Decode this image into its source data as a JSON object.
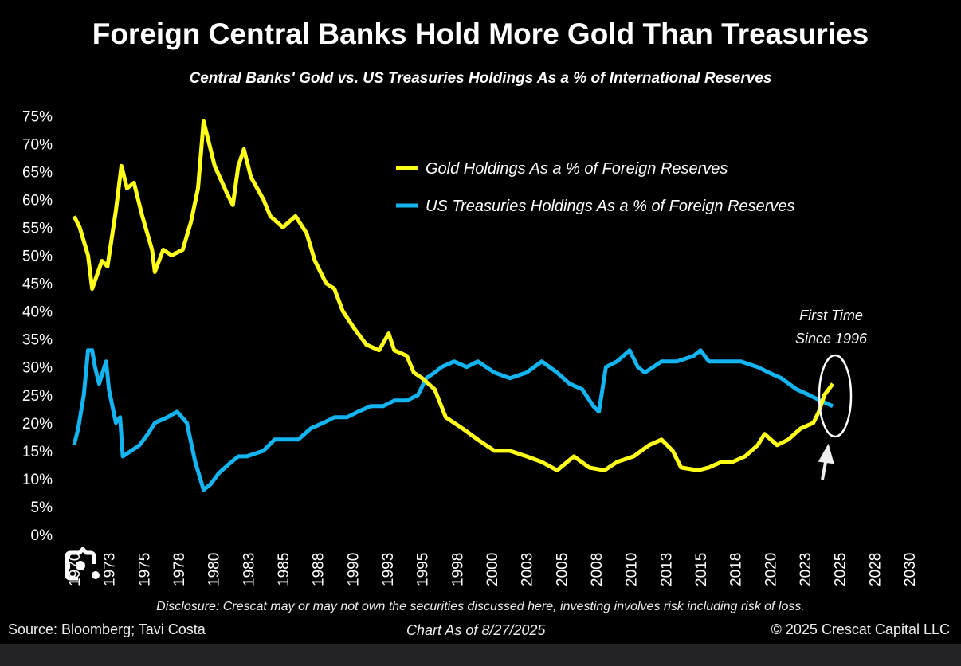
{
  "chart_data": {
    "type": "line",
    "title": "Foreign Central Banks Hold More Gold Than Treasuries",
    "subtitle": "Central Banks' Gold vs. US Treasuries Holdings As a % of International Reserves",
    "ylim": [
      0,
      75
    ],
    "xlim": [
      1970,
      2030
    ],
    "y_ticks": [
      "0%",
      "5%",
      "10%",
      "15%",
      "20%",
      "25%",
      "30%",
      "35%",
      "40%",
      "45%",
      "50%",
      "55%",
      "60%",
      "65%",
      "70%",
      "75%"
    ],
    "x_ticks": [
      "1970",
      "1973",
      "1975",
      "1978",
      "1980",
      "1983",
      "1985",
      "1988",
      "1990",
      "1993",
      "1995",
      "1998",
      "2000",
      "2003",
      "2005",
      "2008",
      "2010",
      "2013",
      "2015",
      "2018",
      "2020",
      "2023",
      "2025",
      "2028",
      "2030"
    ],
    "grid": false,
    "legend_placement": "top-right",
    "series": [
      {
        "name": "Gold Holdings As a % of Foreign Reserves",
        "color": "#ffff1a",
        "points": [
          [
            1970.0,
            57
          ],
          [
            1970.4,
            55
          ],
          [
            1971.0,
            50
          ],
          [
            1971.3,
            44
          ],
          [
            1972.0,
            49
          ],
          [
            1972.4,
            48
          ],
          [
            1973.0,
            58
          ],
          [
            1973.4,
            66
          ],
          [
            1973.8,
            62
          ],
          [
            1974.3,
            63
          ],
          [
            1974.9,
            57
          ],
          [
            1975.6,
            51
          ],
          [
            1975.8,
            47
          ],
          [
            1976.4,
            51
          ],
          [
            1977.0,
            50
          ],
          [
            1977.8,
            51
          ],
          [
            1978.4,
            56
          ],
          [
            1978.9,
            62
          ],
          [
            1979.3,
            74
          ],
          [
            1979.7,
            70
          ],
          [
            1980.1,
            66
          ],
          [
            1981.0,
            61
          ],
          [
            1981.4,
            59
          ],
          [
            1981.8,
            66
          ],
          [
            1982.2,
            69
          ],
          [
            1982.7,
            64
          ],
          [
            1983.6,
            60
          ],
          [
            1984.1,
            57
          ],
          [
            1985.0,
            55
          ],
          [
            1985.9,
            57
          ],
          [
            1986.7,
            54
          ],
          [
            1987.3,
            49
          ],
          [
            1988.1,
            45
          ],
          [
            1988.7,
            44
          ],
          [
            1989.3,
            40
          ],
          [
            1990.1,
            37
          ],
          [
            1991.0,
            34
          ],
          [
            1991.9,
            33
          ],
          [
            1992.6,
            36
          ],
          [
            1993.0,
            33
          ],
          [
            1993.9,
            32
          ],
          [
            1994.4,
            29
          ],
          [
            1995.0,
            28
          ],
          [
            1995.9,
            26
          ],
          [
            1996.7,
            21
          ],
          [
            1997.9,
            19
          ],
          [
            1999.0,
            17
          ],
          [
            2000.2,
            15
          ],
          [
            2001.3,
            15
          ],
          [
            2002.5,
            14
          ],
          [
            2003.6,
            13
          ],
          [
            2004.7,
            11.5
          ],
          [
            2005.9,
            14
          ],
          [
            2007.0,
            12
          ],
          [
            2008.1,
            11.5
          ],
          [
            2009.0,
            13
          ],
          [
            2010.2,
            14
          ],
          [
            2011.3,
            16
          ],
          [
            2012.2,
            17
          ],
          [
            2013.0,
            15
          ],
          [
            2013.6,
            12
          ],
          [
            2014.8,
            11.5
          ],
          [
            2015.6,
            12
          ],
          [
            2016.5,
            13
          ],
          [
            2017.3,
            13
          ],
          [
            2018.2,
            14
          ],
          [
            2019.1,
            16
          ],
          [
            2019.6,
            18
          ],
          [
            2020.5,
            16
          ],
          [
            2021.3,
            17
          ],
          [
            2022.2,
            19
          ],
          [
            2023.1,
            20
          ],
          [
            2023.5,
            22
          ],
          [
            2023.9,
            25
          ],
          [
            2024.5,
            27
          ]
        ]
      },
      {
        "name": "US Treasuries Holdings As a % of Foreign Reserves",
        "color": "#14b4f0",
        "points": [
          [
            1970.0,
            16
          ],
          [
            1970.3,
            19
          ],
          [
            1970.7,
            25
          ],
          [
            1971.0,
            33
          ],
          [
            1971.3,
            33
          ],
          [
            1971.5,
            30
          ],
          [
            1971.8,
            27
          ],
          [
            1972.3,
            31
          ],
          [
            1972.5,
            26
          ],
          [
            1973.0,
            20
          ],
          [
            1973.3,
            21
          ],
          [
            1973.5,
            14
          ],
          [
            1974.1,
            15
          ],
          [
            1974.7,
            16
          ],
          [
            1975.3,
            18
          ],
          [
            1975.8,
            20
          ],
          [
            1976.7,
            21
          ],
          [
            1977.4,
            22
          ],
          [
            1978.1,
            20
          ],
          [
            1978.7,
            13
          ],
          [
            1979.3,
            8
          ],
          [
            1979.8,
            9
          ],
          [
            1980.4,
            11
          ],
          [
            1981.3,
            13
          ],
          [
            1981.8,
            14
          ],
          [
            1982.4,
            14
          ],
          [
            1983.6,
            15
          ],
          [
            1984.4,
            17
          ],
          [
            1985.3,
            17
          ],
          [
            1986.1,
            17
          ],
          [
            1987.0,
            19
          ],
          [
            1987.9,
            20
          ],
          [
            1988.7,
            21
          ],
          [
            1989.6,
            21
          ],
          [
            1990.4,
            22
          ],
          [
            1991.3,
            23
          ],
          [
            1992.2,
            23
          ],
          [
            1993.0,
            24
          ],
          [
            1993.9,
            24
          ],
          [
            1994.7,
            25
          ],
          [
            1995.3,
            28
          ],
          [
            1995.9,
            29
          ],
          [
            1996.4,
            30
          ],
          [
            1997.3,
            31
          ],
          [
            1998.2,
            30
          ],
          [
            1999.0,
            31
          ],
          [
            2000.2,
            29
          ],
          [
            2001.3,
            28
          ],
          [
            2002.5,
            29
          ],
          [
            2003.6,
            31
          ],
          [
            2004.7,
            29
          ],
          [
            2005.6,
            27
          ],
          [
            2006.5,
            26
          ],
          [
            2007.3,
            23
          ],
          [
            2007.7,
            22
          ],
          [
            2008.2,
            30
          ],
          [
            2009.0,
            31
          ],
          [
            2009.9,
            33
          ],
          [
            2010.5,
            30
          ],
          [
            2011.0,
            29
          ],
          [
            2012.2,
            31
          ],
          [
            2013.3,
            31
          ],
          [
            2014.5,
            32
          ],
          [
            2015.0,
            33
          ],
          [
            2015.6,
            31
          ],
          [
            2016.8,
            31
          ],
          [
            2017.9,
            31
          ],
          [
            2019.1,
            30
          ],
          [
            2019.9,
            29
          ],
          [
            2020.8,
            28
          ],
          [
            2021.9,
            26
          ],
          [
            2022.8,
            25
          ],
          [
            2023.6,
            24
          ],
          [
            2024.5,
            23
          ]
        ]
      }
    ],
    "annotation": "First Time\nSince 1996",
    "annotation_lines": [
      "First Time",
      "Since 1996"
    ]
  },
  "footer": {
    "disclosure": "Disclosure: Crescat may or may not own the securities discussed here, investing involves risk including risk of loss.",
    "source": "Source: Bloomberg; Tavi Costa",
    "chart_date": "Chart As of 8/27/2025",
    "copyright": "© 2025 Crescat Capital LLC"
  },
  "overlay": {
    "icon": "lens-camera-icon"
  }
}
